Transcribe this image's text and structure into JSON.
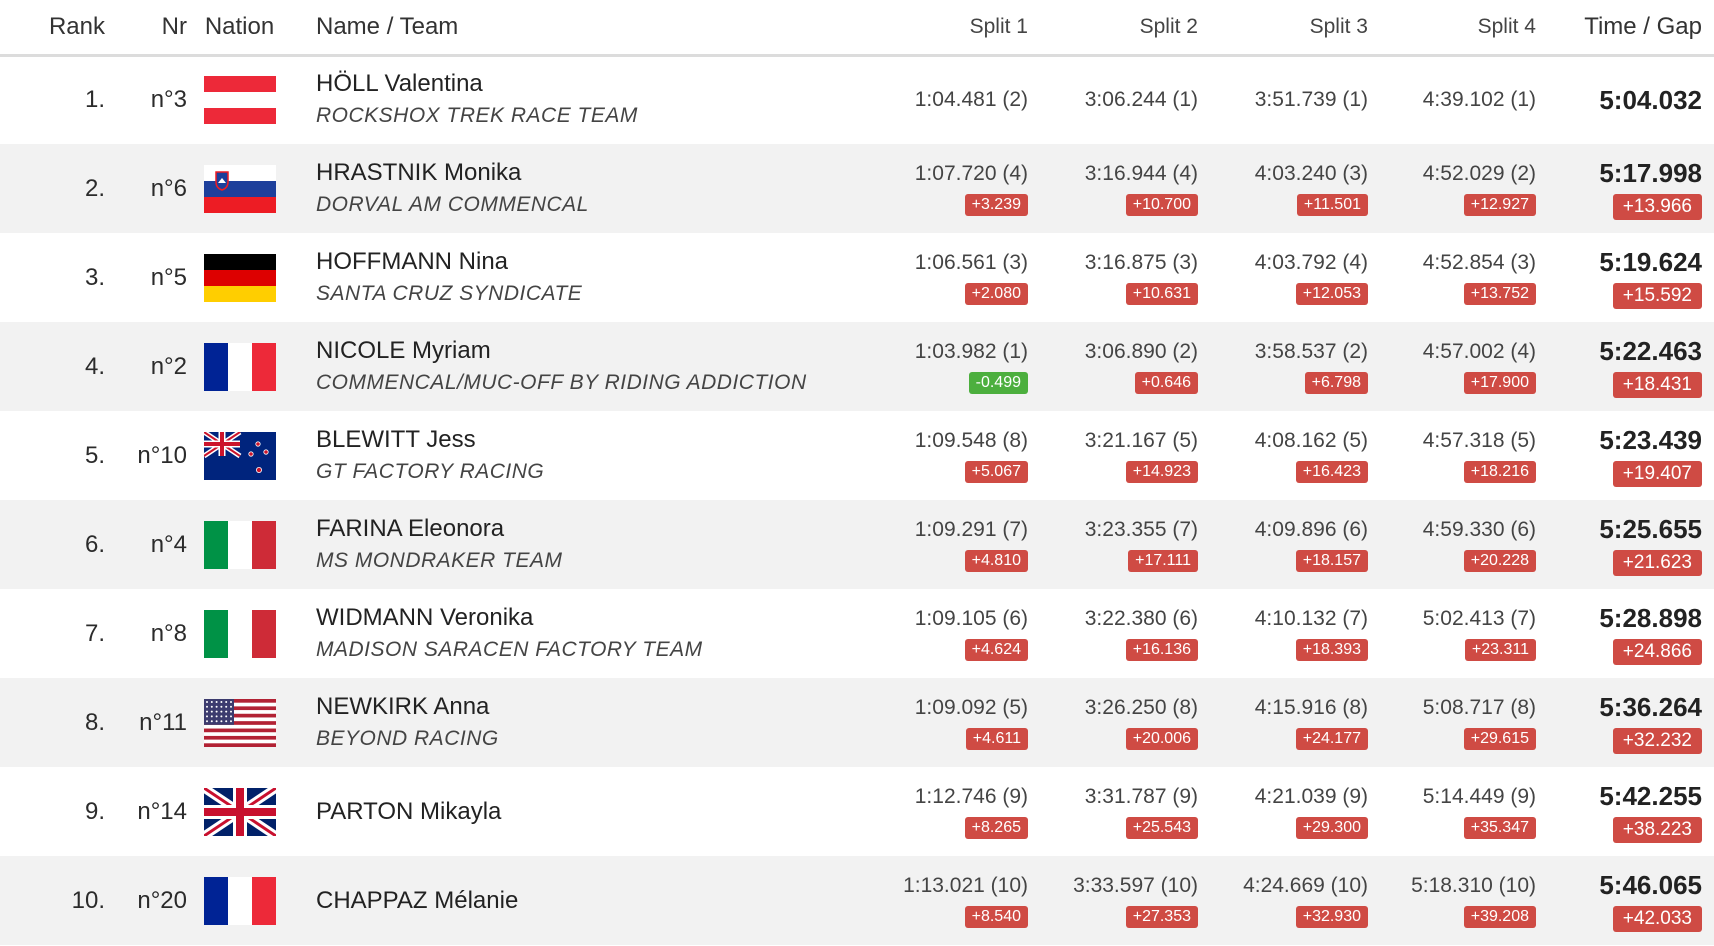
{
  "headers": {
    "rank": "Rank",
    "nr": "Nr",
    "nation": "Nation",
    "name_team": "Name / Team",
    "split1": "Split 1",
    "split2": "Split 2",
    "split3": "Split 3",
    "split4": "Split 4",
    "time_gap": "Time / Gap"
  },
  "colors": {
    "gap_red": "#cf4b44",
    "gap_green": "#4caf3e",
    "row_alt": "#f2f2f2"
  },
  "rows": [
    {
      "rank": "1.",
      "nr": "n°3",
      "flag": "austria-flag-icon",
      "name": "HÖLL Valentina",
      "team": "ROCKSHOX TREK RACE TEAM",
      "s1": "1:04.481 (2)",
      "g1": "",
      "s2": "3:06.244 (1)",
      "g2": "",
      "s3": "3:51.739 (1)",
      "g3": "",
      "s4": "4:39.102 (1)",
      "g4": "",
      "time": "5:04.032",
      "gap": ""
    },
    {
      "rank": "2.",
      "nr": "n°6",
      "flag": "slovenia-flag-icon",
      "name": "HRASTNIK Monika",
      "team": "DORVAL AM COMMENCAL",
      "s1": "1:07.720 (4)",
      "g1": "+3.239",
      "s2": "3:16.944 (4)",
      "g2": "+10.700",
      "s3": "4:03.240 (3)",
      "g3": "+11.501",
      "s4": "4:52.029 (2)",
      "g4": "+12.927",
      "time": "5:17.998",
      "gap": "+13.966"
    },
    {
      "rank": "3.",
      "nr": "n°5",
      "flag": "germany-flag-icon",
      "name": "HOFFMANN Nina",
      "team": "SANTA CRUZ SYNDICATE",
      "s1": "1:06.561 (3)",
      "g1": "+2.080",
      "s2": "3:16.875 (3)",
      "g2": "+10.631",
      "s3": "4:03.792 (4)",
      "g3": "+12.053",
      "s4": "4:52.854 (3)",
      "g4": "+13.752",
      "time": "5:19.624",
      "gap": "+15.592"
    },
    {
      "rank": "4.",
      "nr": "n°2",
      "flag": "france-flag-icon",
      "name": "NICOLE Myriam",
      "team": "COMMENCAL/MUC-OFF BY RIDING ADDICTION",
      "s1": "1:03.982 (1)",
      "g1": "-0.499",
      "g1_green": true,
      "s2": "3:06.890 (2)",
      "g2": "+0.646",
      "s3": "3:58.537 (2)",
      "g3": "+6.798",
      "s4": "4:57.002 (4)",
      "g4": "+17.900",
      "time": "5:22.463",
      "gap": "+18.431"
    },
    {
      "rank": "5.",
      "nr": "n°10",
      "flag": "new-zealand-flag-icon",
      "name": "BLEWITT Jess",
      "team": "GT FACTORY RACING",
      "s1": "1:09.548 (8)",
      "g1": "+5.067",
      "s2": "3:21.167 (5)",
      "g2": "+14.923",
      "s3": "4:08.162 (5)",
      "g3": "+16.423",
      "s4": "4:57.318 (5)",
      "g4": "+18.216",
      "time": "5:23.439",
      "gap": "+19.407"
    },
    {
      "rank": "6.",
      "nr": "n°4",
      "flag": "italy-flag-icon",
      "name": "FARINA Eleonora",
      "team": "MS MONDRAKER TEAM",
      "s1": "1:09.291 (7)",
      "g1": "+4.810",
      "s2": "3:23.355 (7)",
      "g2": "+17.111",
      "s3": "4:09.896 (6)",
      "g3": "+18.157",
      "s4": "4:59.330 (6)",
      "g4": "+20.228",
      "time": "5:25.655",
      "gap": "+21.623"
    },
    {
      "rank": "7.",
      "nr": "n°8",
      "flag": "italy-flag-icon",
      "name": "WIDMANN Veronika",
      "team": "MADISON SARACEN FACTORY TEAM",
      "s1": "1:09.105 (6)",
      "g1": "+4.624",
      "s2": "3:22.380 (6)",
      "g2": "+16.136",
      "s3": "4:10.132 (7)",
      "g3": "+18.393",
      "s4": "5:02.413 (7)",
      "g4": "+23.311",
      "time": "5:28.898",
      "gap": "+24.866"
    },
    {
      "rank": "8.",
      "nr": "n°11",
      "flag": "usa-flag-icon",
      "name": "NEWKIRK Anna",
      "team": "BEYOND RACING",
      "s1": "1:09.092 (5)",
      "g1": "+4.611",
      "s2": "3:26.250 (8)",
      "g2": "+20.006",
      "s3": "4:15.916 (8)",
      "g3": "+24.177",
      "s4": "5:08.717 (8)",
      "g4": "+29.615",
      "time": "5:36.264",
      "gap": "+32.232"
    },
    {
      "rank": "9.",
      "nr": "n°14",
      "flag": "uk-flag-icon",
      "name": "PARTON Mikayla",
      "team": "",
      "s1": "1:12.746 (9)",
      "g1": "+8.265",
      "s2": "3:31.787 (9)",
      "g2": "+25.543",
      "s3": "4:21.039 (9)",
      "g3": "+29.300",
      "s4": "5:14.449 (9)",
      "g4": "+35.347",
      "time": "5:42.255",
      "gap": "+38.223"
    },
    {
      "rank": "10.",
      "nr": "n°20",
      "flag": "france-flag-icon",
      "name": "CHAPPAZ Mélanie",
      "team": "",
      "s1": "1:13.021 (10)",
      "g1": "+8.540",
      "s2": "3:33.597 (10)",
      "g2": "+27.353",
      "s3": "4:24.669 (10)",
      "g3": "+32.930",
      "s4": "5:18.310 (10)",
      "g4": "+39.208",
      "time": "5:46.065",
      "gap": "+42.033"
    }
  ]
}
